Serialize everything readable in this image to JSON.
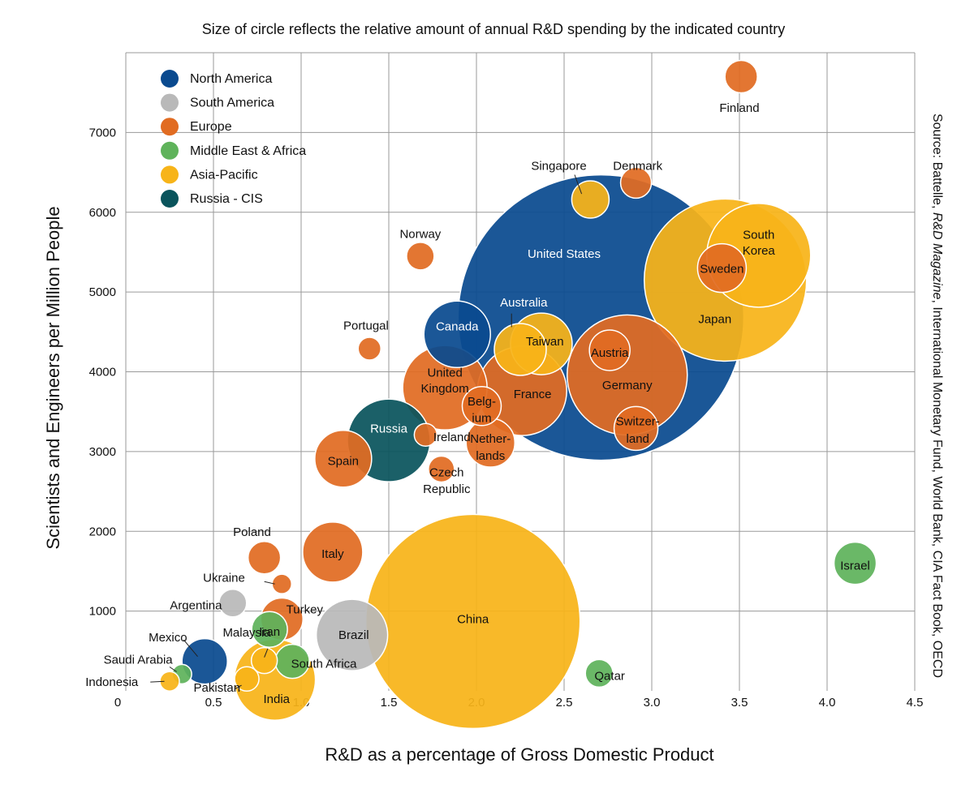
{
  "chart_data": {
    "type": "scatter",
    "subtitle": "Size of circle reflects the relative amount of annual R&D spending by the indicated country",
    "xlabel": "R&D as a percentage of Gross Domestic Product",
    "ylabel": "Scientists and Engineers per Million People",
    "source_prefix": "Source:  Battelle, ",
    "source_italic": "R&D Magazine",
    "source_suffix": ", International Monetary Fund, World Bank, CIA Fact Book, OECD",
    "xlim": [
      0,
      4.5
    ],
    "ylim": [
      0,
      8000
    ],
    "xticks": [
      "0",
      "0.5",
      "1.0",
      "1.5",
      "2.0",
      "2.5",
      "3.0",
      "3.5",
      "4.0",
      "4.5"
    ],
    "yticks": [
      "1000",
      "2000",
      "3000",
      "4000",
      "5000",
      "6000",
      "7000"
    ],
    "grid": true,
    "legend_position": "top-left",
    "legend": [
      {
        "key": "na",
        "name": "North America",
        "color": "#0a4a8f"
      },
      {
        "key": "sa",
        "name": "South America",
        "color": "#b9b9b9"
      },
      {
        "key": "eu",
        "name": "Europe",
        "color": "#e16c22"
      },
      {
        "key": "me",
        "name": "Middle East & Africa",
        "color": "#5fb35b"
      },
      {
        "key": "ap",
        "name": "Asia-Pacific",
        "color": "#f7b419"
      },
      {
        "key": "ru",
        "name": "Russia - CIS",
        "color": "#0a545c"
      }
    ],
    "points": [
      {
        "country": "United States",
        "region": "na",
        "x": 2.71,
        "y": 4680,
        "size": 176
      },
      {
        "country": "China",
        "region": "ap",
        "x": 1.98,
        "y": 870,
        "size": 132
      },
      {
        "country": "Japan",
        "region": "ap",
        "x": 3.42,
        "y": 5150,
        "size": 100
      },
      {
        "country": "Germany",
        "region": "eu",
        "x": 2.86,
        "y": 3960,
        "size": 74
      },
      {
        "country": "South Korea",
        "region": "ap",
        "x": 3.61,
        "y": 5460,
        "size": 64
      },
      {
        "country": "France",
        "region": "eu",
        "x": 2.26,
        "y": 3760,
        "size": 55
      },
      {
        "country": "United Kingdom",
        "region": "eu",
        "x": 1.82,
        "y": 3800,
        "size": 52
      },
      {
        "country": "India",
        "region": "ap",
        "x": 0.85,
        "y": 140,
        "size": 50
      },
      {
        "country": "Russia",
        "region": "ru",
        "x": 1.5,
        "y": 3140,
        "size": 51
      },
      {
        "country": "Brazil",
        "region": "sa",
        "x": 1.29,
        "y": 700,
        "size": 44
      },
      {
        "country": "Canada",
        "region": "na",
        "x": 1.89,
        "y": 4470,
        "size": 41
      },
      {
        "country": "Italy",
        "region": "eu",
        "x": 1.18,
        "y": 1740,
        "size": 37
      },
      {
        "country": "Taiwan",
        "region": "ap",
        "x": 2.37,
        "y": 4350,
        "size": 38
      },
      {
        "country": "Australia",
        "region": "ap",
        "x": 2.25,
        "y": 4280,
        "size": 32
      },
      {
        "country": "Spain",
        "region": "eu",
        "x": 1.24,
        "y": 2910,
        "size": 35
      },
      {
        "country": "Sweden",
        "region": "eu",
        "x": 3.4,
        "y": 5300,
        "size": 30
      },
      {
        "country": "Netherlands",
        "region": "eu",
        "x": 2.08,
        "y": 3110,
        "size": 30
      },
      {
        "country": "Switzerland",
        "region": "eu",
        "x": 2.91,
        "y": 3290,
        "size": 27
      },
      {
        "country": "Austria",
        "region": "eu",
        "x": 2.76,
        "y": 4270,
        "size": 25
      },
      {
        "country": "Belgium",
        "region": "eu",
        "x": 2.03,
        "y": 3570,
        "size": 24
      },
      {
        "country": "Mexico",
        "region": "na",
        "x": 0.45,
        "y": 370,
        "size": 28
      },
      {
        "country": "Turkey",
        "region": "eu",
        "x": 0.89,
        "y": 900,
        "size": 26
      },
      {
        "country": "Iran",
        "region": "me",
        "x": 0.82,
        "y": 770,
        "size": 22
      },
      {
        "country": "South Africa",
        "region": "me",
        "x": 0.95,
        "y": 370,
        "size": 21
      },
      {
        "country": "Israel",
        "region": "me",
        "x": 4.16,
        "y": 1600,
        "size": 26
      },
      {
        "country": "Finland",
        "region": "eu",
        "x": 3.51,
        "y": 7700,
        "size": 20
      },
      {
        "country": "Denmark",
        "region": "eu",
        "x": 2.91,
        "y": 6370,
        "size": 19
      },
      {
        "country": "Singapore",
        "region": "ap",
        "x": 2.65,
        "y": 6160,
        "size": 23
      },
      {
        "country": "Norway",
        "region": "eu",
        "x": 1.68,
        "y": 5450,
        "size": 17
      },
      {
        "country": "Poland",
        "region": "eu",
        "x": 0.79,
        "y": 1670,
        "size": 20
      },
      {
        "country": "Portugal",
        "region": "eu",
        "x": 1.39,
        "y": 4290,
        "size": 14
      },
      {
        "country": "Czech Republic",
        "region": "eu",
        "x": 1.8,
        "y": 2780,
        "size": 16
      },
      {
        "country": "Ireland",
        "region": "eu",
        "x": 1.71,
        "y": 3210,
        "size": 14
      },
      {
        "country": "Argentina",
        "region": "sa",
        "x": 0.61,
        "y": 1100,
        "size": 17
      },
      {
        "country": "Ukraine",
        "region": "eu",
        "x": 0.89,
        "y": 1340,
        "size": 12
      },
      {
        "country": "Malaysia",
        "region": "ap",
        "x": 0.79,
        "y": 380,
        "size": 16
      },
      {
        "country": "Pakistan",
        "region": "ap",
        "x": 0.69,
        "y": 150,
        "size": 15
      },
      {
        "country": "Qatar",
        "region": "me",
        "x": 2.7,
        "y": 220,
        "size": 17
      },
      {
        "country": "Saudi Arabia",
        "region": "me",
        "x": 0.32,
        "y": 210,
        "size": 12
      },
      {
        "country": "Indonesia",
        "region": "ap",
        "x": 0.25,
        "y": 120,
        "size": 12
      }
    ],
    "labels": [
      {
        "text": "United States",
        "x": 2.5,
        "y": 5480,
        "color": "#ffffff"
      },
      {
        "text": "China",
        "x": 1.98,
        "y": 900,
        "color": "#111111"
      },
      {
        "text": "Japan",
        "x": 3.36,
        "y": 4660,
        "color": "#111111"
      },
      {
        "text": "Germany",
        "x": 2.86,
        "y": 3830,
        "color": "#111111"
      },
      {
        "text": "South",
        "x": 3.61,
        "y": 5720,
        "color": "#111111"
      },
      {
        "text": "Korea",
        "x": 3.61,
        "y": 5520,
        "color": "#111111"
      },
      {
        "text": "Sweden",
        "x": 3.4,
        "y": 5290,
        "color": "#111111"
      },
      {
        "text": "France",
        "x": 2.32,
        "y": 3720,
        "color": "#111111"
      },
      {
        "text": "United",
        "x": 1.82,
        "y": 3990,
        "color": "#111111"
      },
      {
        "text": "Kingdom",
        "x": 1.82,
        "y": 3790,
        "color": "#111111"
      },
      {
        "text": "India",
        "x": 0.86,
        "y": -100,
        "color": "#111111"
      },
      {
        "text": "Russia",
        "x": 1.5,
        "y": 3290,
        "color": "#ffffff"
      },
      {
        "text": "Brazil",
        "x": 1.3,
        "y": 700,
        "color": "#111111"
      },
      {
        "text": "Canada",
        "x": 1.89,
        "y": 4570,
        "color": "#ffffff"
      },
      {
        "text": "Italy",
        "x": 1.18,
        "y": 1720,
        "color": "#111111"
      },
      {
        "text": "Taiwan",
        "x": 2.39,
        "y": 4380,
        "color": "#111111"
      },
      {
        "text": "Australia",
        "x": 2.27,
        "y": 4870,
        "color": "#ffffff"
      },
      {
        "text": "Spain",
        "x": 1.24,
        "y": 2880,
        "color": "#111111"
      },
      {
        "text": "Nether-",
        "x": 2.08,
        "y": 3160,
        "color": "#111111"
      },
      {
        "text": "lands",
        "x": 2.08,
        "y": 2950,
        "color": "#111111"
      },
      {
        "text": "Switzer-",
        "x": 2.92,
        "y": 3380,
        "color": "#111111"
      },
      {
        "text": "land",
        "x": 2.92,
        "y": 3160,
        "color": "#111111"
      },
      {
        "text": "Austria",
        "x": 2.76,
        "y": 4240,
        "color": "#111111"
      },
      {
        "text": "Belg-",
        "x": 2.03,
        "y": 3630,
        "color": "#111111"
      },
      {
        "text": "ium",
        "x": 2.03,
        "y": 3420,
        "color": "#111111"
      },
      {
        "text": "Turkey",
        "x": 1.02,
        "y": 1020,
        "color": "#111111"
      },
      {
        "text": "Iran",
        "x": 0.82,
        "y": 740,
        "color": "#111111"
      },
      {
        "text": "South Africa",
        "x": 1.13,
        "y": 340,
        "color": "#111111"
      },
      {
        "text": "Israel",
        "x": 4.16,
        "y": 1570,
        "color": "#111111"
      },
      {
        "text": "Qatar",
        "x": 2.76,
        "y": 190,
        "color": "#111111"
      },
      {
        "text": "Finland",
        "x": 3.5,
        "y": 7310,
        "color": "#111111"
      },
      {
        "text": "Denmark",
        "x": 2.92,
        "y": 6580,
        "color": "#111111"
      },
      {
        "text": "Singapore",
        "x": 2.47,
        "y": 6580,
        "color": "#111111"
      },
      {
        "text": "Norway",
        "x": 1.68,
        "y": 5730,
        "color": "#111111"
      },
      {
        "text": "Portugal",
        "x": 1.37,
        "y": 4580,
        "color": "#111111"
      },
      {
        "text": "Ireland",
        "x": 1.86,
        "y": 3180,
        "color": "#111111"
      },
      {
        "text": "Czech",
        "x": 1.83,
        "y": 2740,
        "color": "#111111"
      },
      {
        "text": "Republic",
        "x": 1.83,
        "y": 2530,
        "color": "#111111"
      },
      {
        "text": "Poland",
        "x": 0.72,
        "y": 1990,
        "color": "#111111"
      },
      {
        "text": "Ukraine",
        "x": 0.56,
        "y": 1420,
        "color": "#111111"
      },
      {
        "text": "Argentina",
        "x": 0.4,
        "y": 1070,
        "color": "#111111"
      },
      {
        "text": "Malaysia",
        "x": 0.69,
        "y": 730,
        "color": "#111111"
      },
      {
        "text": "Mexico",
        "x": 0.24,
        "y": 670,
        "color": "#111111"
      },
      {
        "text": "Saudi Arabia",
        "x": 0.07,
        "y": 390,
        "color": "#111111"
      },
      {
        "text": "Pakistan",
        "x": 0.52,
        "y": 40,
        "color": "#111111"
      },
      {
        "text": "Indonesia",
        "x": -0.08,
        "y": 110,
        "color": "#111111"
      }
    ],
    "leaders": [
      {
        "x1": 2.2,
        "y1": 4730,
        "x2": 2.2,
        "y2": 4560
      },
      {
        "x1": 2.56,
        "y1": 6470,
        "x2": 2.6,
        "y2": 6230
      },
      {
        "x1": 0.79,
        "y1": 1370,
        "x2": 0.85,
        "y2": 1340
      },
      {
        "x1": 0.81,
        "y1": 530,
        "x2": 0.79,
        "y2": 420
      },
      {
        "x1": 0.33,
        "y1": 640,
        "x2": 0.41,
        "y2": 430
      },
      {
        "x1": 0.25,
        "y1": 300,
        "x2": 0.29,
        "y2": 240
      },
      {
        "x1": 0.14,
        "y1": 110,
        "x2": 0.22,
        "y2": 120
      },
      {
        "x1": 0.62,
        "y1": 20,
        "x2": 0.66,
        "y2": 70
      }
    ]
  }
}
